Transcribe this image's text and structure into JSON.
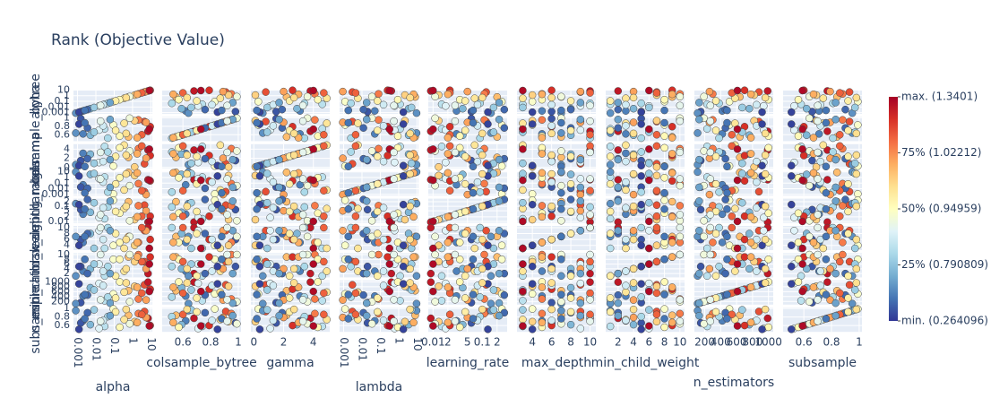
{
  "chart_data": {
    "type": "scatter-matrix",
    "title": "Rank (Objective Value)",
    "params": [
      {
        "name": "alpha",
        "log": true,
        "lim": [
          0.0006,
          12
        ],
        "ticks": [
          0.001,
          0.01,
          0.1,
          1,
          10
        ]
      },
      {
        "name": "colsample_bytree",
        "log": false,
        "lim": [
          0.45,
          1.02
        ],
        "ticks": [
          0.6,
          0.8,
          1
        ]
      },
      {
        "name": "gamma",
        "log": false,
        "lim": [
          -0.2,
          5.1
        ],
        "ticks": [
          0,
          2,
          4
        ]
      },
      {
        "name": "lambda",
        "log": true,
        "lim": [
          0.0006,
          12
        ],
        "ticks": [
          0.001,
          0.01,
          0.1,
          1,
          10
        ]
      },
      {
        "name": "learning_rate",
        "log": true,
        "lim": [
          0.008,
          0.32
        ],
        "ticks": [
          0.01,
          {
            "value": 0.02,
            "label": "2"
          },
          {
            "value": 0.05,
            "label": "5"
          },
          0.1,
          {
            "value": 0.2,
            "label": "2"
          }
        ]
      },
      {
        "name": "max_depth",
        "log": false,
        "lim": [
          2.4,
          10.6
        ],
        "ticks": [
          4,
          6,
          8,
          10
        ]
      },
      {
        "name": "min_child_weight",
        "log": false,
        "lim": [
          0.4,
          10.6
        ],
        "ticks": [
          2,
          4,
          6,
          8,
          10
        ]
      },
      {
        "name": "n_estimators",
        "log": false,
        "lim": [
          70,
          1060
        ],
        "ticks": [
          200,
          400,
          600,
          800,
          1000
        ]
      },
      {
        "name": "subsample",
        "log": false,
        "lim": [
          0.45,
          1.02
        ],
        "ticks": [
          0.6,
          0.8,
          1
        ]
      }
    ],
    "trials": [
      {
        "params": [
          0.002,
          0.62,
          3.1,
          0.05,
          0.03,
          5,
          3,
          420,
          0.71
        ],
        "color_value": 0.12
      },
      {
        "params": [
          4.5,
          0.91,
          0.8,
          0.003,
          0.12,
          9,
          7,
          880,
          0.93
        ],
        "color_value": 0.85
      },
      {
        "params": [
          0.03,
          0.74,
          4.6,
          1.2,
          0.015,
          3,
          1,
          230,
          0.58
        ],
        "color_value": 0.33
      },
      {
        "params": [
          0.6,
          0.55,
          2.2,
          8.0,
          0.2,
          7,
          9,
          640,
          0.84
        ],
        "color_value": 0.67
      },
      {
        "params": [
          0.0015,
          0.98,
          1.5,
          0.02,
          0.06,
          6,
          5,
          150,
          0.66
        ],
        "color_value": 0.05
      },
      {
        "params": [
          7.0,
          0.68,
          3.8,
          0.4,
          0.009,
          10,
          2,
          990,
          0.77
        ],
        "color_value": 0.95
      },
      {
        "params": [
          0.09,
          0.83,
          0.3,
          0.0012,
          0.25,
          4,
          8,
          510,
          0.99
        ],
        "color_value": 0.48
      },
      {
        "params": [
          0.005,
          0.59,
          2.9,
          3.5,
          0.04,
          8,
          4,
          760,
          0.62
        ],
        "color_value": 0.22
      },
      {
        "params": [
          2.1,
          0.95,
          4.1,
          0.08,
          0.11,
          5,
          10,
          300,
          0.88
        ],
        "color_value": 0.78
      },
      {
        "params": [
          0.015,
          0.71,
          1.1,
          0.6,
          0.018,
          9,
          6,
          940,
          0.53
        ],
        "color_value": 0.4
      },
      {
        "params": [
          0.35,
          0.87,
          4.9,
          0.006,
          0.07,
          3,
          3,
          580,
          0.74
        ],
        "color_value": 0.58
      },
      {
        "params": [
          0.0008,
          0.64,
          0.6,
          9.5,
          0.15,
          7,
          1,
          110,
          0.95
        ],
        "color_value": 0.15
      },
      {
        "params": [
          9.2,
          0.79,
          2.6,
          0.25,
          0.022,
          6,
          9,
          700,
          0.6
        ],
        "color_value": 0.9
      },
      {
        "params": [
          0.045,
          0.52,
          3.4,
          0.0025,
          0.09,
          10,
          5,
          380,
          0.81
        ],
        "color_value": 0.3
      },
      {
        "params": [
          1.3,
          0.93,
          0.1,
          2.2,
          0.013,
          4,
          7,
          820,
          0.69
        ],
        "color_value": 0.63
      },
      {
        "params": [
          0.0035,
          0.76,
          1.9,
          0.012,
          0.28,
          8,
          2,
          460,
          0.9
        ],
        "color_value": 0.08
      },
      {
        "params": [
          0.2,
          0.57,
          4.3,
          0.9,
          0.035,
          5,
          8,
          1000,
          0.56
        ],
        "color_value": 0.52
      },
      {
        "params": [
          5.5,
          0.89,
          2.0,
          0.0009,
          0.05,
          9,
          4,
          260,
          0.79
        ],
        "color_value": 0.72
      },
      {
        "params": [
          0.008,
          0.66,
          0.9,
          5.0,
          0.17,
          3,
          6,
          670,
          0.97
        ],
        "color_value": 0.27
      },
      {
        "params": [
          0.7,
          0.99,
          3.6,
          0.035,
          0.011,
          7,
          10,
          190,
          0.64
        ],
        "color_value": 0.45
      },
      {
        "params": [
          0.025,
          0.81,
          1.3,
          0.15,
          0.08,
          6,
          3,
          850,
          0.72
        ],
        "color_value": 0.37
      },
      {
        "params": [
          3.2,
          0.6,
          4.7,
          0.0045,
          0.022,
          10,
          7,
          540,
          0.86
        ],
        "color_value": 0.82
      },
      {
        "params": [
          0.0012,
          0.85,
          0.4,
          1.8,
          0.13,
          4,
          5,
          920,
          0.51
        ],
        "color_value": 0.02
      },
      {
        "params": [
          0.12,
          0.7,
          2.4,
          0.07,
          0.045,
          8,
          1,
          340,
          0.92
        ],
        "color_value": 0.55
      },
      {
        "params": [
          1.8,
          0.53,
          3.0,
          6.5,
          0.02,
          5,
          9,
          780,
          0.67
        ],
        "color_value": 0.7
      },
      {
        "params": [
          0.06,
          0.96,
          1.7,
          0.018,
          0.22,
          9,
          2,
          130,
          0.83
        ],
        "color_value": 0.18
      },
      {
        "params": [
          8.3,
          0.73,
          4.0,
          0.32,
          0.01,
          3,
          6,
          610,
          0.59
        ],
        "color_value": 0.98
      },
      {
        "params": [
          0.0025,
          0.88,
          0.2,
          0.0018,
          0.065,
          7,
          8,
          480,
          0.76
        ],
        "color_value": 0.1
      },
      {
        "params": [
          0.45,
          0.63,
          2.7,
          4.2,
          0.1,
          6,
          4,
          960,
          0.98
        ],
        "color_value": 0.6
      },
      {
        "params": [
          0.018,
          0.92,
          3.3,
          0.55,
          0.028,
          10,
          10,
          270,
          0.7
        ],
        "color_value": 0.42
      }
    ],
    "colorscale": [
      [
        0,
        "#313695"
      ],
      [
        0.1,
        "#4575b4"
      ],
      [
        0.2,
        "#74add1"
      ],
      [
        0.3,
        "#abd9e9"
      ],
      [
        0.4,
        "#e0f3f8"
      ],
      [
        0.5,
        "#ffffbf"
      ],
      [
        0.6,
        "#fee090"
      ],
      [
        0.7,
        "#fdae61"
      ],
      [
        0.8,
        "#f46d43"
      ],
      [
        0.9,
        "#d73027"
      ],
      [
        1,
        "#a50026"
      ]
    ],
    "colorbar_lim": [
      0,
      1
    ],
    "colorbar_ticks": [
      {
        "value": 1,
        "label": "max. (1.3401)"
      },
      {
        "value": 0.75,
        "label": "75% (1.02212)"
      },
      {
        "value": 0.5,
        "label": "50% (0.94959)"
      },
      {
        "value": 0.25,
        "label": "25% (0.790809)"
      },
      {
        "value": 0,
        "label": "min. (0.264096)"
      }
    ]
  }
}
